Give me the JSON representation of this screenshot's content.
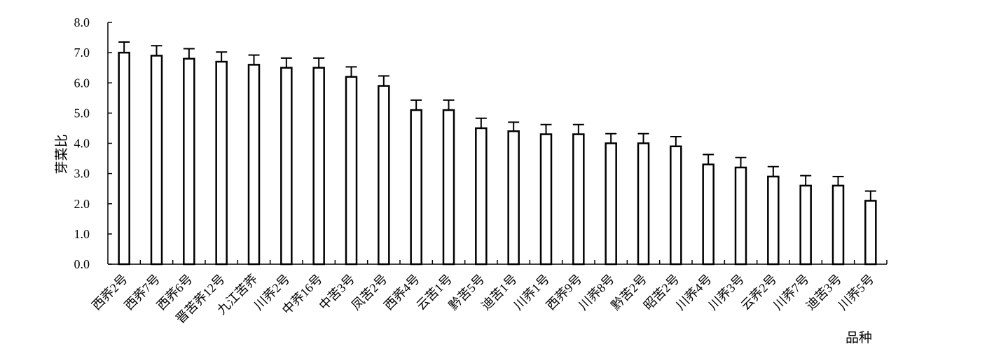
{
  "chart_data": {
    "type": "bar",
    "xlabel": "品种",
    "ylabel": "芽菜比",
    "ylim": [
      0,
      8
    ],
    "yticks": [
      "0.0",
      "1.0",
      "2.0",
      "3.0",
      "4.0",
      "5.0",
      "6.0",
      "7.0",
      "8.0"
    ],
    "grid": false,
    "legend": "none",
    "colors": {
      "bar_fill": "#ffffff",
      "bar_stroke": "#000000"
    },
    "categories": [
      "西荞2号",
      "西荞7号",
      "西荞6号",
      "晋苦荞12号",
      "九江苦荞",
      "川荞2号",
      "中荞16号",
      "中苦3号",
      "凤苦2号",
      "西荞4号",
      "云苦1号",
      "黔苦5号",
      "迪苦1号",
      "川荞1号",
      "西荞9号",
      "川荞8号",
      "黔苦2号",
      "昭苦2号",
      "川荞4号",
      "川荞3号",
      "云荞2号",
      "川荞7号",
      "迪苦3号",
      "川荞5号"
    ],
    "values": [
      7.0,
      6.9,
      6.8,
      6.7,
      6.6,
      6.5,
      6.5,
      6.2,
      5.9,
      5.1,
      5.1,
      4.5,
      4.4,
      4.3,
      4.3,
      4.0,
      4.0,
      3.9,
      3.3,
      3.2,
      2.9,
      2.6,
      2.6,
      2.1
    ],
    "errors": [
      0.35,
      0.33,
      0.33,
      0.32,
      0.32,
      0.32,
      0.32,
      0.33,
      0.33,
      0.33,
      0.33,
      0.33,
      0.3,
      0.32,
      0.32,
      0.32,
      0.32,
      0.32,
      0.33,
      0.33,
      0.33,
      0.33,
      0.3,
      0.32
    ]
  }
}
